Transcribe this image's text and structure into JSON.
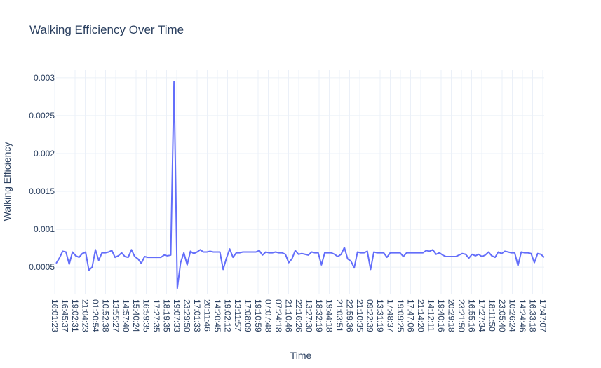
{
  "chart_data": {
    "type": "line",
    "title": "Walking Efficiency Over Time",
    "xlabel": "Time",
    "ylabel": "Walking Efficiency",
    "ylim": [
      0.00015,
      0.0031
    ],
    "y_ticks": [
      0.0005,
      0.001,
      0.0015,
      0.002,
      0.0025,
      0.003
    ],
    "y_tick_labels": [
      "0.0005",
      "0.001",
      "0.0015",
      "0.002",
      "0.0025",
      "0.003"
    ],
    "x_tick_labels": [
      "16:01:23",
      "16:45:37",
      "19:02:31",
      "21:04:23",
      "01:20:54",
      "10:52:38",
      "13:55:27",
      "14:57:40",
      "15:40:24",
      "16:59:35",
      "17:27:35",
      "18:19:35",
      "19:07:33",
      "23:29:50",
      "17:01:33",
      "20:11:46",
      "14:20:45",
      "19:02:12",
      "13:11:57",
      "17:08:09",
      "19:10:59",
      "07:07:48",
      "07:24:18",
      "21:10:46",
      "22:16:26",
      "13:27:30",
      "18:32:19",
      "19:44:18",
      "21:03:51",
      "22:59:36",
      "21:10:35",
      "09:22:39",
      "13:31:19",
      "17:48:37",
      "19:09:25",
      "17:47:06",
      "21:14:20",
      "14:12:11",
      "19:40:16",
      "20:29:18",
      "23:21:50",
      "16:55:16",
      "17:27:34",
      "18:11:50",
      "23:05:40",
      "10:26:24",
      "14:24:46",
      "16:33:18",
      "17:47:07"
    ],
    "grid": true,
    "legend": "none",
    "line_color": "#636efa",
    "series": [
      {
        "values": [
          0.00055,
          0.00062,
          0.00071,
          0.0007,
          0.00054,
          0.0007,
          0.00065,
          0.00063,
          0.00068,
          0.0007,
          0.00046,
          0.0005,
          0.00073,
          0.00059,
          0.00069,
          0.00069,
          0.0007,
          0.00072,
          0.00063,
          0.00065,
          0.00069,
          0.00064,
          0.00063,
          0.00073,
          0.00064,
          0.00061,
          0.00055,
          0.00064,
          0.00063,
          0.00063,
          0.00063,
          0.00063,
          0.00063,
          0.00066,
          0.00065,
          0.00066,
          0.00295,
          0.00022,
          0.00056,
          0.00069,
          0.00053,
          0.00071,
          0.00068,
          0.0007,
          0.00073,
          0.0007,
          0.0007,
          0.00071,
          0.0007,
          0.0007,
          0.0007,
          0.00047,
          0.00062,
          0.00074,
          0.00063,
          0.00069,
          0.00069,
          0.0007,
          0.0007,
          0.0007,
          0.0007,
          0.0007,
          0.00072,
          0.00066,
          0.0007,
          0.00069,
          0.00069,
          0.0007,
          0.00069,
          0.00069,
          0.00067,
          0.00056,
          0.00061,
          0.00072,
          0.00067,
          0.00068,
          0.00067,
          0.00066,
          0.0007,
          0.00069,
          0.00069,
          0.00053,
          0.00069,
          0.00069,
          0.00069,
          0.00067,
          0.00064,
          0.00067,
          0.00076,
          0.00061,
          0.00058,
          0.00049,
          0.0007,
          0.00069,
          0.00069,
          0.00071,
          0.00047,
          0.0007,
          0.00069,
          0.00069,
          0.00069,
          0.00063,
          0.00069,
          0.00069,
          0.00069,
          0.00069,
          0.00064,
          0.00069,
          0.00069,
          0.00069,
          0.00069,
          0.00069,
          0.00069,
          0.00072,
          0.00071,
          0.00073,
          0.00067,
          0.00069,
          0.00066,
          0.00064,
          0.00064,
          0.00064,
          0.00064,
          0.00066,
          0.00068,
          0.00067,
          0.00062,
          0.00067,
          0.00065,
          0.00067,
          0.00064,
          0.00066,
          0.0007,
          0.00065,
          0.00063,
          0.0007,
          0.00068,
          0.00071,
          0.0007,
          0.00069,
          0.00069,
          0.00052,
          0.0007,
          0.00069,
          0.00069,
          0.00068,
          0.00056,
          0.00068,
          0.00067,
          0.00063
        ]
      }
    ]
  }
}
